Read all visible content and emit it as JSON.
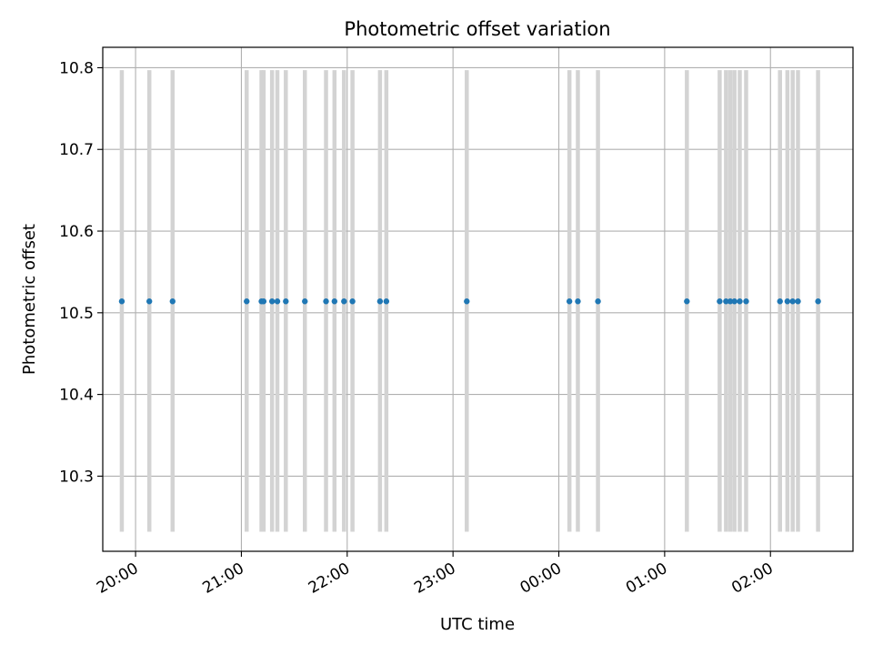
{
  "chart_data": {
    "type": "scatter",
    "title": "Photometric offset variation",
    "xlabel": "UTC time",
    "ylabel": "Photometric offset",
    "x_ticks": [
      "20:00",
      "21:00",
      "22:00",
      "23:00",
      "00:00",
      "01:00",
      "02:00"
    ],
    "y_ticks": [
      "10.3",
      "10.4",
      "10.5",
      "10.6",
      "10.7",
      "10.8"
    ],
    "ylim": [
      10.208,
      10.825
    ],
    "x_tick_hours": [
      20,
      21,
      22,
      23,
      24,
      25,
      26
    ],
    "xlim_hours": [
      19.69,
      26.78
    ],
    "grid": true,
    "colors": {
      "points": "#1f77b4",
      "bars": "#d3d3d3",
      "grid": "#b0b0b0"
    },
    "bar_ymin": 10.232,
    "bar_ymax": 10.797,
    "series": [
      {
        "y": 10.514,
        "x_hours": [
          19.87,
          20.13,
          20.35,
          21.05,
          21.19,
          21.21,
          21.29,
          21.34,
          21.42,
          21.6,
          21.8,
          21.88,
          21.97,
          22.05,
          22.31,
          22.37,
          23.13,
          24.1,
          24.18,
          24.37,
          25.21,
          25.52,
          25.58,
          25.62,
          25.66,
          25.71,
          25.77,
          26.09,
          26.16,
          26.21,
          26.26,
          26.45
        ]
      }
    ]
  }
}
